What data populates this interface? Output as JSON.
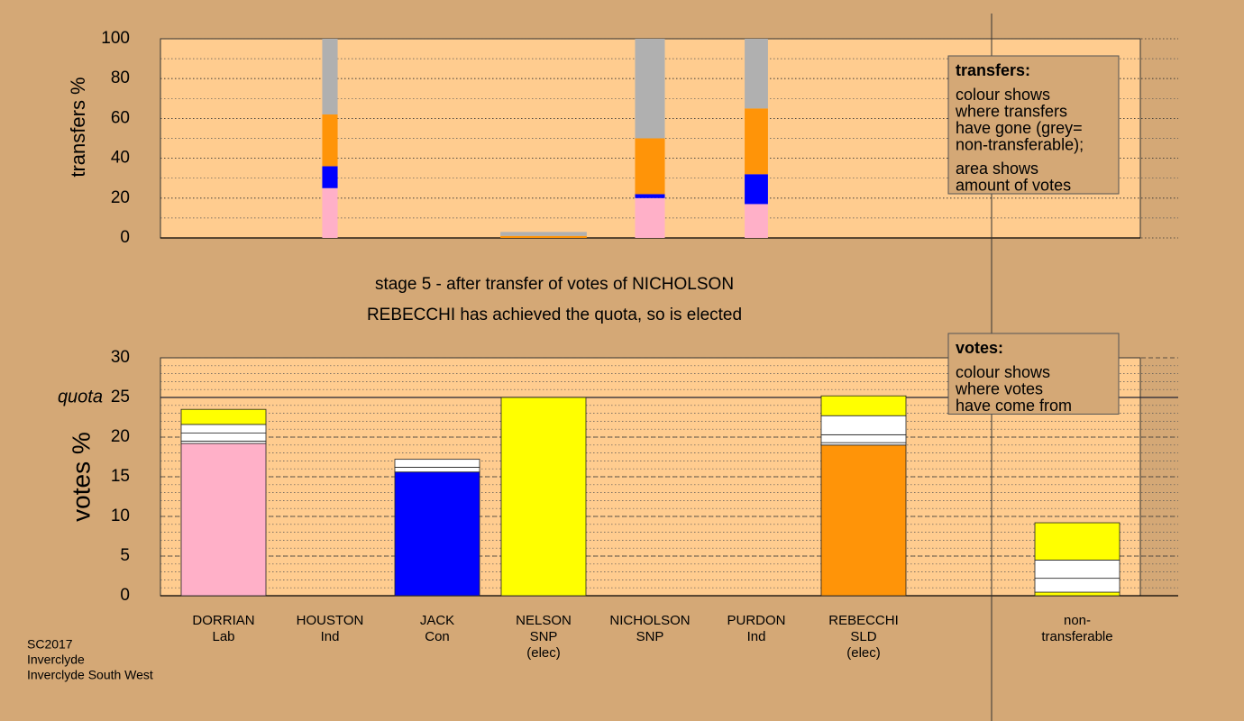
{
  "chart_data": [
    {
      "type": "stacked-bar",
      "y_title": "transfers %",
      "ylim": [
        0,
        100
      ],
      "yticks": [
        0,
        20,
        40,
        60,
        80,
        100
      ],
      "minor_step": 10,
      "legend": {
        "title": "transfers:",
        "paragraphs": [
          [
            "colour shows",
            "where transfers",
            "have gone (grey=",
            "non-transferable);"
          ],
          [
            "area shows",
            "amount of votes"
          ]
        ]
      },
      "bars": [
        null,
        {
          "amount": 4.5,
          "segments": [
            {
              "value": 25,
              "color": "#ffb0c8"
            },
            {
              "value": 11,
              "color": "#0000ff"
            },
            {
              "value": 26,
              "color": "#ff9408"
            },
            {
              "value": 38,
              "color": "#b0b0b0"
            }
          ]
        },
        null,
        {
          "amount": 25.2,
          "segments": [
            {
              "value": 1,
              "color": "#ff9408"
            },
            {
              "value": 2,
              "color": "#b0b0b0"
            }
          ]
        },
        {
          "amount": 8.7,
          "segments": [
            {
              "value": 20,
              "color": "#ffb0c8"
            },
            {
              "value": 2,
              "color": "#0000ff"
            },
            {
              "value": 28,
              "color": "#ff9408"
            },
            {
              "value": 50,
              "color": "#b0b0b0"
            }
          ]
        },
        {
          "amount": 6.8,
          "segments": [
            {
              "value": 17,
              "color": "#ffb0c8"
            },
            {
              "value": 15,
              "color": "#0000ff"
            },
            {
              "value": 33,
              "color": "#ff9408"
            },
            {
              "value": 35,
              "color": "#b0b0b0"
            }
          ]
        },
        null,
        null
      ]
    },
    {
      "type": "stacked-bar",
      "title": [
        "stage 5 - after transfer of votes of NICHOLSON",
        "REBECCHI has achieved the quota, so is elected"
      ],
      "y_title": "votes %",
      "ylim": [
        0,
        30
      ],
      "yticks": [
        0,
        5,
        10,
        15,
        20,
        25,
        30
      ],
      "minor_step": 1,
      "quota": {
        "value": 25,
        "label": "quota"
      },
      "legend": {
        "title": "votes:",
        "paragraphs": [
          [
            "colour shows",
            "where votes",
            "have come from"
          ]
        ]
      },
      "categories": [
        [
          "DORRIAN",
          "Lab"
        ],
        [
          "HOUSTON",
          "Ind"
        ],
        [
          "JACK",
          "Con"
        ],
        [
          "NELSON",
          "SNP",
          "(elec)"
        ],
        [
          "NICHOLSON",
          "SNP"
        ],
        [
          "PURDON",
          "Ind"
        ],
        [
          "REBECCHI",
          "SLD",
          "(elec)"
        ],
        [
          "non-",
          "transferable"
        ]
      ],
      "bars": [
        {
          "segments": [
            {
              "value": 19.2,
              "color": "#ffb0c8"
            },
            {
              "value": 0.3,
              "color": "#ffffff"
            },
            {
              "value": 1.0,
              "color": "#ffffff"
            },
            {
              "value": 1.1,
              "color": "#ffffff"
            },
            {
              "value": 1.9,
              "color": "#ffff00"
            }
          ]
        },
        {
          "segments": [
            {
              "value": 0,
              "color": "#ffffff"
            }
          ]
        },
        {
          "segments": [
            {
              "value": 15.6,
              "color": "#0000ff"
            },
            {
              "value": 0.6,
              "color": "#ffffff"
            },
            {
              "value": 1.0,
              "color": "#ffffff"
            }
          ]
        },
        {
          "segments": [
            {
              "value": 25,
              "color": "#ffff00"
            }
          ]
        },
        {
          "segments": [
            {
              "value": 0,
              "color": "#ffffff"
            }
          ]
        },
        {
          "segments": [
            {
              "value": 0,
              "color": "#ffffff"
            }
          ]
        },
        {
          "segments": [
            {
              "value": 19.0,
              "color": "#ff9408"
            },
            {
              "value": 0.3,
              "color": "#ffffff"
            },
            {
              "value": 1.0,
              "color": "#ffffff"
            },
            {
              "value": 2.4,
              "color": "#ffffff"
            },
            {
              "value": 2.5,
              "color": "#ffff00"
            }
          ]
        },
        {
          "segments": [
            {
              "value": 0.45,
              "color": "#ffff00"
            },
            {
              "value": 1.75,
              "color": "#ffffff"
            },
            {
              "value": 2.3,
              "color": "#ffffff"
            },
            {
              "value": 4.7,
              "color": "#ffff00"
            }
          ]
        }
      ],
      "footer": [
        "SC2017",
        "Inverclyde",
        "Inverclyde South West"
      ]
    }
  ]
}
